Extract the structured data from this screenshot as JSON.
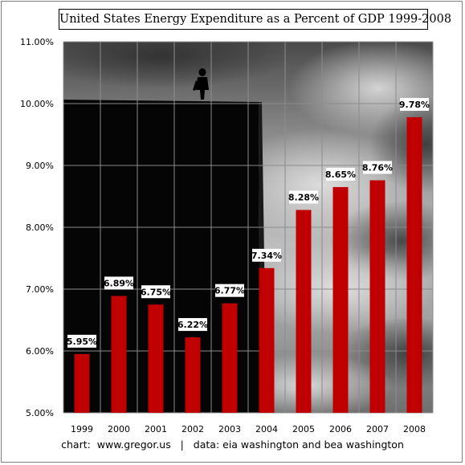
{
  "chart_data": {
    "type": "bar",
    "title": "United States Energy Expenditure as a Percent of GDP 1999-2008",
    "categories": [
      "1999",
      "2000",
      "2001",
      "2002",
      "2003",
      "2004",
      "2005",
      "2006",
      "2007",
      "2008"
    ],
    "values": [
      5.95,
      6.89,
      6.75,
      6.22,
      6.77,
      7.34,
      8.28,
      8.65,
      8.76,
      9.78
    ],
    "data_labels": [
      "5.95%",
      "6.89%",
      "6.75%",
      "6.22%",
      "6.77%",
      "7.34%",
      "8.28%",
      "8.65%",
      "8.76%",
      "9.78%"
    ],
    "yticks": [
      5,
      6,
      7,
      8,
      9,
      10,
      11
    ],
    "ytick_labels": [
      "5.00%",
      "6.00%",
      "7.00%",
      "8.00%",
      "9.00%",
      "10.00%",
      "11.00%"
    ],
    "ylim": [
      5,
      11
    ],
    "xlabel": "",
    "ylabel": "",
    "grid": true,
    "bar_color": "#c00000",
    "footer": "chart:  www.gregor.us   |   data: eia washington and bea washington"
  }
}
